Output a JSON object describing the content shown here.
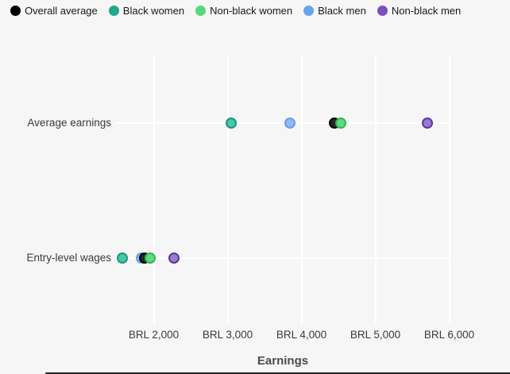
{
  "chart_data": {
    "type": "scatter",
    "title": "",
    "xlabel": "Earnings",
    "ylabel": "",
    "categories": [
      "Average earnings",
      "Entry-level wages"
    ],
    "series": [
      {
        "name": "Overall average",
        "values": [
          4450,
          1880
        ],
        "ring": "#050505",
        "fill": "#262626",
        "legend_color": "#000000"
      },
      {
        "name": "Black women",
        "values": [
          3050,
          1580
        ],
        "ring": "#17997e",
        "fill": "#4cc5a8",
        "legend_color": "#1da98a"
      },
      {
        "name": "Non-black women",
        "values": [
          4530,
          1950
        ],
        "ring": "#2eb657",
        "fill": "#62da81",
        "legend_color": "#57d87b"
      },
      {
        "name": "Black men",
        "values": [
          3840,
          1830
        ],
        "ring": "#6b9eea",
        "fill": "#8fb8f2",
        "legend_color": "#66a3ee"
      },
      {
        "name": "Non-black men",
        "values": [
          5700,
          2270
        ],
        "ring": "#5b38a1",
        "fill": "#9a79cf",
        "legend_color": "#7a4fc0"
      }
    ],
    "x_ticks": [
      {
        "value": 2000,
        "label": "BRL 2,000"
      },
      {
        "value": 3000,
        "label": "BRL 3,000"
      },
      {
        "value": 4000,
        "label": "BRL 4,000"
      },
      {
        "value": 5000,
        "label": "BRL 5,000"
      },
      {
        "value": 6000,
        "label": "BRL 6,000"
      }
    ],
    "xlim": [
      1500,
      6500
    ],
    "grid": true,
    "legend_position": "top",
    "currency": "BRL"
  },
  "page": {
    "background": "#f6f6f7",
    "gridline_color": "#ffffff"
  }
}
